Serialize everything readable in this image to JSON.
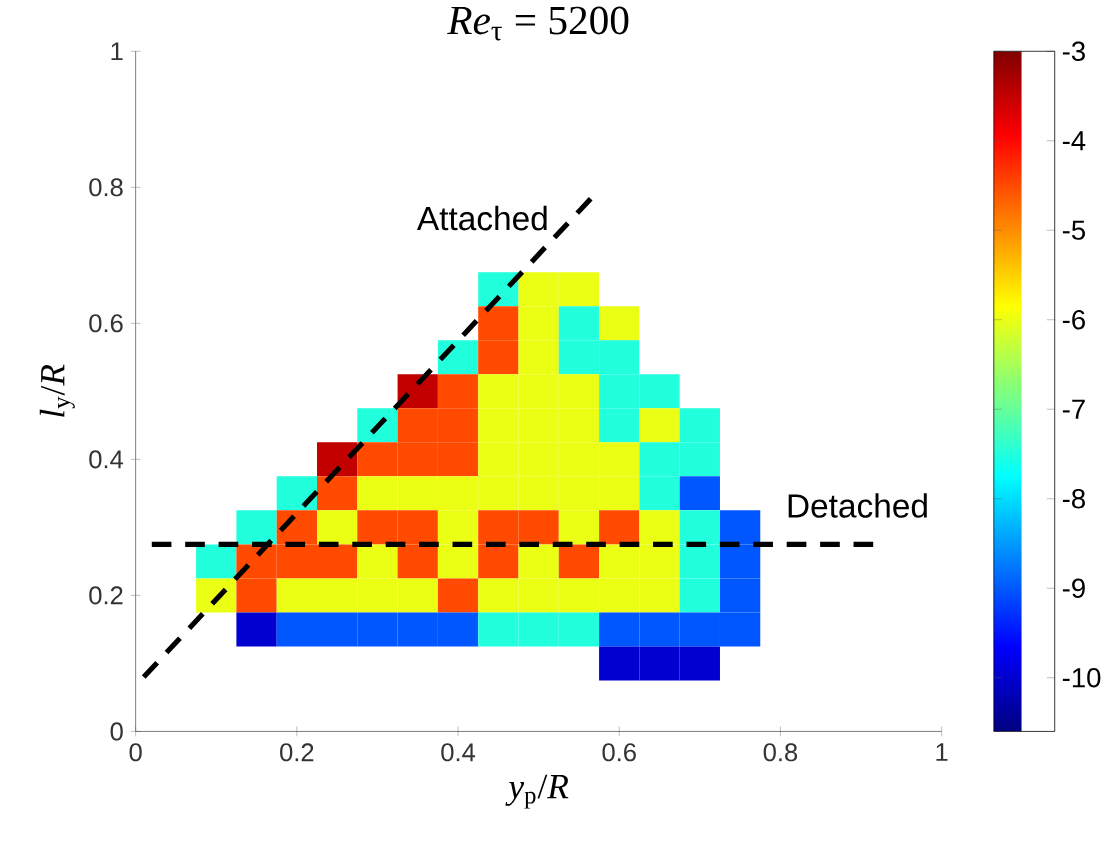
{
  "chart_data": {
    "type": "heatmap",
    "title": "*Re*$_{τ}$ = 5200",
    "xlabel": "*y*$_{p}$/*R*",
    "ylabel": "*l*$_{y}$/*R*",
    "xlim": [
      0,
      1
    ],
    "ylim": [
      0,
      1
    ],
    "xticks": [
      0,
      0.2,
      0.4,
      0.6,
      0.8,
      1
    ],
    "yticks": [
      0,
      0.2,
      0.4,
      0.6,
      0.8,
      1
    ],
    "x": [
      0.1,
      0.15,
      0.2,
      0.25,
      0.3,
      0.35,
      0.4,
      0.45,
      0.5,
      0.55,
      0.6,
      0.65,
      0.7,
      0.75
    ],
    "y": [
      0.65,
      0.6,
      0.55,
      0.5,
      0.45,
      0.4,
      0.35,
      0.3,
      0.25,
      0.2,
      0.15,
      0.1
    ],
    "cells": [
      [
        null,
        null,
        null,
        null,
        null,
        null,
        null,
        -7.5,
        -6,
        -6,
        null,
        null,
        null,
        null
      ],
      [
        null,
        null,
        null,
        null,
        null,
        null,
        null,
        -4.5,
        -6,
        -7.5,
        -6,
        null,
        null,
        null
      ],
      [
        null,
        null,
        null,
        null,
        null,
        null,
        -7.5,
        -4.5,
        -6,
        -7.5,
        -7.5,
        null,
        null,
        null
      ],
      [
        null,
        null,
        null,
        null,
        null,
        -3.5,
        -4.5,
        -6,
        -6,
        -6,
        -7.5,
        -7.5,
        null,
        null
      ],
      [
        null,
        null,
        null,
        null,
        -7.5,
        -4.5,
        -4.5,
        -6,
        -6,
        -6,
        -7.5,
        -6,
        -7.5,
        null
      ],
      [
        null,
        null,
        null,
        -3.5,
        -4.5,
        -4.5,
        -4.5,
        -6,
        -6,
        -6,
        -6,
        -7.5,
        -7.5,
        null
      ],
      [
        null,
        null,
        -7.5,
        -4.5,
        -6,
        -6,
        -6,
        -6,
        -6,
        -6,
        -6,
        -7.5,
        -9,
        null
      ],
      [
        null,
        -7.5,
        -4.5,
        -6,
        -4.5,
        -4.5,
        -6,
        -4.5,
        -4.5,
        -6,
        -4.5,
        -6,
        -7.5,
        -9
      ],
      [
        -7.5,
        -4.5,
        -4.5,
        -4.5,
        -6,
        -4.5,
        -6,
        -4.5,
        -6,
        -4.5,
        -6,
        -6,
        -7.5,
        -9
      ],
      [
        -6,
        -4.5,
        -6,
        -6,
        -6,
        -6,
        -4.5,
        -6,
        -6,
        -6,
        -6,
        -6,
        -7.5,
        -9
      ],
      [
        null,
        -10,
        -9,
        -9,
        -9,
        -9,
        -9,
        -7.5,
        -7.5,
        -7.5,
        -9,
        -9,
        -9,
        -9
      ],
      [
        null,
        null,
        null,
        null,
        null,
        null,
        null,
        null,
        null,
        null,
        -10,
        -10,
        -10,
        null
      ]
    ],
    "clim": [
      -10.6,
      -3
    ],
    "cticks": [
      -10,
      -9,
      -8,
      -7,
      -6,
      -5,
      -4,
      -3
    ],
    "series": [
      {
        "type": "line",
        "name": "Attached",
        "color": "#000000",
        "line_style": "dashed",
        "x": [
          0.01,
          0.57
        ],
        "values": [
          0.08,
          0.79
        ]
      },
      {
        "type": "line",
        "name": "Detached",
        "color": "#000000",
        "line_style": "dashed",
        "x": [
          0.02,
          0.92
        ],
        "values": [
          0.275,
          0.275
        ]
      }
    ]
  }
}
